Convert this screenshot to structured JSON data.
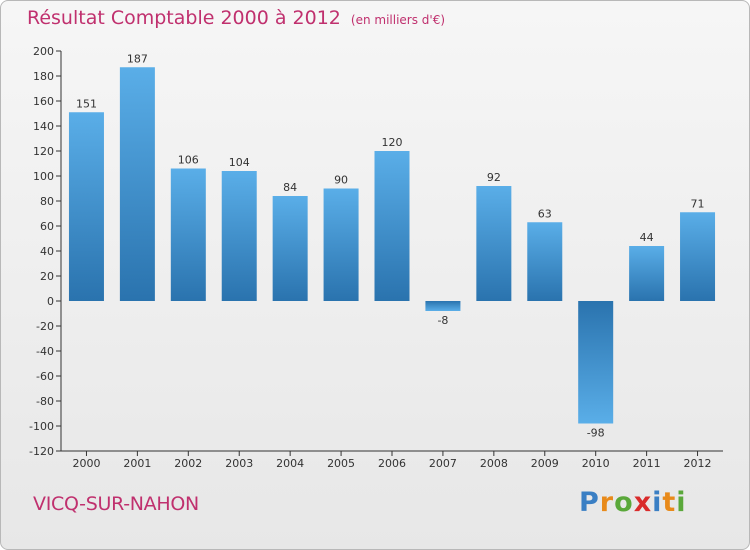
{
  "title": "Résultat Comptable 2000 à 2012",
  "subtitle": "(en milliers d'€)",
  "commune": "VICQ-SUR-NAHON",
  "logo": {
    "letters": [
      "P",
      "r",
      "o",
      "x",
      "i",
      "t",
      "i"
    ],
    "colors": [
      "#3a7fc4",
      "#e88a1a",
      "#5aa83a",
      "#d92b2b",
      "#3a7fc4",
      "#e88a1a",
      "#5aa83a"
    ]
  },
  "colors": {
    "accent": "#c0306e",
    "bar_top": "#5aaee8",
    "bar_bottom": "#2a73ae",
    "axis": "#333333",
    "grid": "#cccccc"
  },
  "chart_data": {
    "type": "bar",
    "title": "Résultat Comptable 2000 à 2012",
    "ylabel": "",
    "xlabel": "",
    "categories": [
      "2000",
      "2001",
      "2002",
      "2003",
      "2004",
      "2005",
      "2006",
      "2007",
      "2008",
      "2009",
      "2010",
      "2011",
      "2012"
    ],
    "values": [
      151,
      187,
      106,
      104,
      84,
      90,
      120,
      -8,
      92,
      63,
      -98,
      44,
      71
    ],
    "data_labels": [
      "151",
      "187",
      "106",
      "104",
      "84",
      "90",
      "120",
      "-8",
      "92",
      "63",
      "-98",
      "44",
      "71"
    ],
    "ylim": [
      -120,
      200
    ],
    "yticks": [
      -120,
      -100,
      -80,
      -60,
      -40,
      -20,
      0,
      20,
      40,
      60,
      80,
      100,
      120,
      140,
      160,
      180,
      200
    ],
    "ytick_labels": [
      "-120",
      "-100",
      "-80",
      "-60",
      "-40",
      "-20",
      "0",
      "20",
      "40",
      "60",
      "80",
      "100",
      "120",
      "140",
      "160",
      "180",
      "200"
    ],
    "grid": false
  }
}
